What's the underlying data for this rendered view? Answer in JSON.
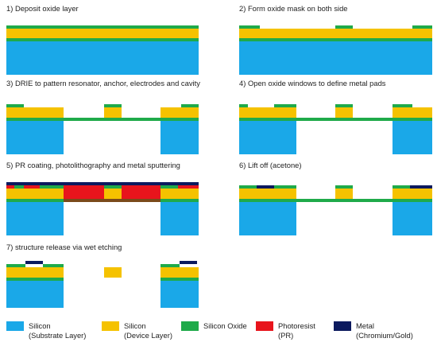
{
  "steps": [
    {
      "n": 1,
      "label": "1) Deposit   oxide layer"
    },
    {
      "n": 2,
      "label": "2) Form oxide mask on both side"
    },
    {
      "n": 3,
      "label": "3) DRIE to pattern resonator, anchor, electrodes and cavity"
    },
    {
      "n": 4,
      "label": "4) Open oxide windows to define metal pads"
    },
    {
      "n": 5,
      "label": "5) PR coating, photolithography and metal sputtering"
    },
    {
      "n": 6,
      "label": "6) Lift off (acetone)"
    },
    {
      "n": 7,
      "label": "7) structure release via wet etching"
    }
  ],
  "legend": [
    {
      "material": "silicon-substrate",
      "line1": "Silicon",
      "line2": "(Substrate Layer)",
      "color": "#1aa8e8"
    },
    {
      "material": "silicon-device",
      "line1": "Silicon",
      "line2": "(Device Layer)",
      "color": "#f5c200"
    },
    {
      "material": "silicon-oxide",
      "line1": "Silicon Oxide",
      "line2": "",
      "color": "#1faa4a"
    },
    {
      "material": "photoresist",
      "line1": "Photoresist",
      "line2": "(PR)",
      "color": "#e8141c"
    },
    {
      "material": "metal",
      "line1": "Metal",
      "line2": "(Chromium/Gold)",
      "color": "#0c1a5e"
    }
  ]
}
